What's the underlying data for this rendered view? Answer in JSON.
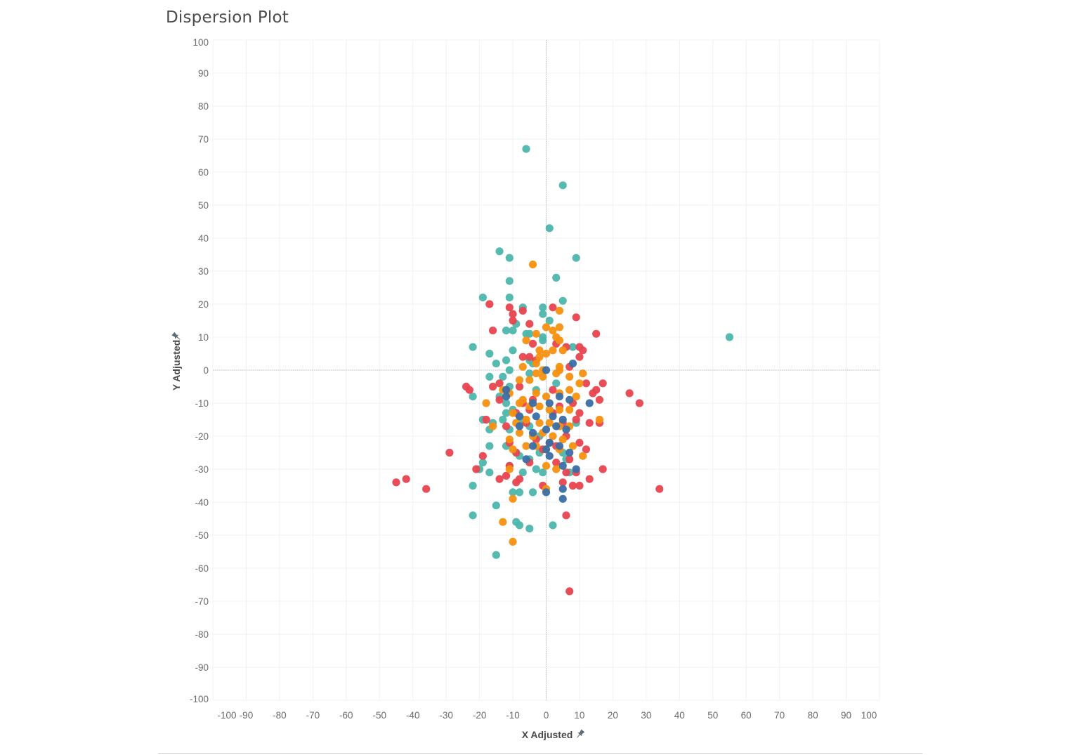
{
  "chart_data": {
    "type": "scatter",
    "title": "Dispersion Plot",
    "xlabel": "X Adjusted",
    "ylabel": "Y Adjusted",
    "xlim": [
      -100,
      100
    ],
    "ylim": [
      -100,
      100
    ],
    "grid": true,
    "zero_lines": true,
    "x_tick_labels": [
      "-100",
      "-90",
      "-80",
      "-70",
      "-60",
      "-50",
      "-40",
      "-30",
      "-20",
      "-10",
      "0",
      "10",
      "20",
      "30",
      "40",
      "50",
      "60",
      "70",
      "80",
      "90",
      "100"
    ],
    "x_ticks": [
      -100,
      -90,
      -80,
      -70,
      -60,
      -50,
      -40,
      -30,
      -20,
      -10,
      0,
      10,
      20,
      30,
      40,
      50,
      60,
      70,
      80,
      90,
      100
    ],
    "y_tick_labels": [
      "100",
      "90",
      "80",
      "70",
      "60",
      "50",
      "40",
      "30",
      "20",
      "10",
      "0",
      "-10",
      "-20",
      "-30",
      "-40",
      "-50",
      "-60",
      "-70",
      "-80",
      "-90",
      "-100"
    ],
    "y_ticks": [
      100,
      90,
      80,
      70,
      60,
      50,
      40,
      30,
      20,
      10,
      0,
      -10,
      -20,
      -30,
      -40,
      -50,
      -60,
      -70,
      -80,
      -90,
      -100
    ],
    "series": [
      {
        "name": "teal",
        "color": "#4db6ac",
        "points": [
          [
            -6,
            67
          ],
          [
            5,
            56
          ],
          [
            1,
            43
          ],
          [
            9,
            34
          ],
          [
            -14,
            36
          ],
          [
            -11,
            34
          ],
          [
            3,
            28
          ],
          [
            -11,
            27
          ],
          [
            5,
            21
          ],
          [
            -19,
            22
          ],
          [
            -11,
            22
          ],
          [
            -7,
            19
          ],
          [
            -1,
            19
          ],
          [
            -1,
            17
          ],
          [
            1,
            15
          ],
          [
            -9,
            14
          ],
          [
            -10,
            12
          ],
          [
            -6,
            11
          ],
          [
            -5,
            11
          ],
          [
            -1,
            10
          ],
          [
            -1,
            9
          ],
          [
            -12,
            12
          ],
          [
            -22,
            7
          ],
          [
            -17,
            5
          ],
          [
            -10,
            6
          ],
          [
            8,
            7
          ],
          [
            -12,
            3
          ],
          [
            -15,
            2
          ],
          [
            -5,
            3
          ],
          [
            -4,
            2
          ],
          [
            -11,
            0
          ],
          [
            -5,
            -1
          ],
          [
            -17,
            -2
          ],
          [
            -13,
            -2
          ],
          [
            -22,
            -8
          ],
          [
            -11,
            -5
          ],
          [
            -14,
            -8
          ],
          [
            -12,
            -10
          ],
          [
            -3,
            -6
          ],
          [
            3,
            -4
          ],
          [
            -10,
            -12
          ],
          [
            -12,
            -13
          ],
          [
            -7,
            -15
          ],
          [
            -19,
            -15
          ],
          [
            -16,
            -16
          ],
          [
            -13,
            -15
          ],
          [
            -8,
            -14
          ],
          [
            -17,
            -18
          ],
          [
            -11,
            -18
          ],
          [
            -5,
            -17
          ],
          [
            9,
            -16
          ],
          [
            -2,
            -20
          ],
          [
            -17,
            -23
          ],
          [
            -12,
            -23
          ],
          [
            -9,
            -25
          ],
          [
            -5,
            -27
          ],
          [
            -2,
            -25
          ],
          [
            -8,
            -26
          ],
          [
            5,
            -25
          ],
          [
            6,
            -27
          ],
          [
            -19,
            -28
          ],
          [
            -11,
            -29
          ],
          [
            -20,
            -30
          ],
          [
            -17,
            -31
          ],
          [
            -7,
            -31
          ],
          [
            -3,
            -30
          ],
          [
            -1,
            -31
          ],
          [
            -22,
            -35
          ],
          [
            -10,
            -37
          ],
          [
            -8,
            -37
          ],
          [
            -4,
            -37
          ],
          [
            -15,
            -41
          ],
          [
            -22,
            -44
          ],
          [
            -9,
            -46
          ],
          [
            -8,
            -47
          ],
          [
            -5,
            -48
          ],
          [
            2,
            -47
          ],
          [
            -15,
            -56
          ],
          [
            55,
            10
          ],
          [
            7,
            -31
          ]
        ]
      },
      {
        "name": "red",
        "color": "#e8454f",
        "points": [
          [
            -17,
            20
          ],
          [
            -11,
            19
          ],
          [
            -7,
            18
          ],
          [
            2,
            19
          ],
          [
            9,
            16
          ],
          [
            -10,
            17
          ],
          [
            -10,
            15
          ],
          [
            -5,
            14
          ],
          [
            -16,
            12
          ],
          [
            15,
            11
          ],
          [
            -4,
            8
          ],
          [
            3,
            8
          ],
          [
            6,
            7
          ],
          [
            10,
            7
          ],
          [
            11,
            6
          ],
          [
            -7,
            4
          ],
          [
            -5,
            4
          ],
          [
            10,
            4
          ],
          [
            -3,
            3
          ],
          [
            7,
            1
          ],
          [
            -24,
            -5
          ],
          [
            -23,
            -6
          ],
          [
            -16,
            -5
          ],
          [
            -14,
            -4
          ],
          [
            -12,
            -6
          ],
          [
            -8,
            -5
          ],
          [
            2,
            -6
          ],
          [
            12,
            -4
          ],
          [
            15,
            -6
          ],
          [
            17,
            -4
          ],
          [
            -14,
            -9
          ],
          [
            -7,
            -10
          ],
          [
            -4,
            -9
          ],
          [
            4,
            -11
          ],
          [
            8,
            -10
          ],
          [
            14,
            -7
          ],
          [
            -9,
            -13
          ],
          [
            -5,
            -12
          ],
          [
            2,
            -13
          ],
          [
            10,
            -13
          ],
          [
            16,
            -9
          ],
          [
            25,
            -7
          ],
          [
            28,
            -10
          ],
          [
            -18,
            -15
          ],
          [
            -12,
            -17
          ],
          [
            -6,
            -16
          ],
          [
            5,
            -16
          ],
          [
            9,
            -15
          ],
          [
            13,
            -16
          ],
          [
            16,
            -16
          ],
          [
            -11,
            -22
          ],
          [
            -3,
            -21
          ],
          [
            1,
            -22
          ],
          [
            6,
            -20
          ],
          [
            10,
            -22
          ],
          [
            -9,
            -25
          ],
          [
            -1,
            -24
          ],
          [
            3,
            -23
          ],
          [
            12,
            -24
          ],
          [
            -29,
            -25
          ],
          [
            -19,
            -26
          ],
          [
            -11,
            -29
          ],
          [
            -5,
            -28
          ],
          [
            3,
            -28
          ],
          [
            7,
            -27
          ],
          [
            -21,
            -30
          ],
          [
            6,
            -31
          ],
          [
            9,
            -31
          ],
          [
            -45,
            -34
          ],
          [
            -42,
            -33
          ],
          [
            -36,
            -36
          ],
          [
            -14,
            -33
          ],
          [
            -12,
            -32
          ],
          [
            -9,
            -34
          ],
          [
            -8,
            -33
          ],
          [
            -1,
            -35
          ],
          [
            5,
            -34
          ],
          [
            8,
            -35
          ],
          [
            10,
            -35
          ],
          [
            13,
            -33
          ],
          [
            17,
            -30
          ],
          [
            34,
            -36
          ],
          [
            6,
            -44
          ],
          [
            7,
            -67
          ]
        ]
      },
      {
        "name": "orange",
        "color": "#f5900f",
        "points": [
          [
            -4,
            32
          ],
          [
            4,
            18
          ],
          [
            2,
            12
          ],
          [
            4,
            13
          ],
          [
            -3,
            11
          ],
          [
            0,
            13
          ],
          [
            3,
            10
          ],
          [
            -6,
            9
          ],
          [
            4,
            9
          ],
          [
            -2,
            6
          ],
          [
            2,
            6
          ],
          [
            5,
            6
          ],
          [
            0,
            5
          ],
          [
            -2,
            4
          ],
          [
            -3,
            2
          ],
          [
            4,
            1
          ],
          [
            -7,
            1
          ],
          [
            -3,
            -1
          ],
          [
            -1,
            0
          ],
          [
            4,
            0
          ],
          [
            11,
            -1
          ],
          [
            -8,
            -3
          ],
          [
            -5,
            -3
          ],
          [
            -1,
            -2
          ],
          [
            3,
            -1
          ],
          [
            7,
            -2
          ],
          [
            10,
            -4
          ],
          [
            -18,
            -10
          ],
          [
            -13,
            -6
          ],
          [
            -11,
            -7
          ],
          [
            -7,
            -9
          ],
          [
            -3,
            -7
          ],
          [
            0,
            -8
          ],
          [
            4,
            -7
          ],
          [
            7,
            -6
          ],
          [
            9,
            -8
          ],
          [
            -10,
            -13
          ],
          [
            -8,
            -10
          ],
          [
            -5,
            -11
          ],
          [
            -2,
            -11
          ],
          [
            1,
            -12
          ],
          [
            4,
            -12
          ],
          [
            7,
            -12
          ],
          [
            -16,
            -17
          ],
          [
            -9,
            -16
          ],
          [
            -6,
            -15
          ],
          [
            -2,
            -16
          ],
          [
            1,
            -16
          ],
          [
            4,
            -17
          ],
          [
            7,
            -17
          ],
          [
            16,
            -15
          ],
          [
            -11,
            -21
          ],
          [
            -8,
            -19
          ],
          [
            -4,
            -20
          ],
          [
            -1,
            -19
          ],
          [
            2,
            -20
          ],
          [
            5,
            -21
          ],
          [
            8,
            -23
          ],
          [
            -10,
            -24
          ],
          [
            -6,
            -23
          ],
          [
            -3,
            -23
          ],
          [
            0,
            -24
          ],
          [
            4,
            -24
          ],
          [
            11,
            -26
          ],
          [
            -11,
            -30
          ],
          [
            0,
            -29
          ],
          [
            3,
            -30
          ],
          [
            -10,
            -39
          ],
          [
            0,
            -36
          ],
          [
            -13,
            -46
          ],
          [
            -10,
            -52
          ]
        ]
      },
      {
        "name": "navy",
        "color": "#3a6ea5",
        "points": [
          [
            0,
            0
          ],
          [
            8,
            2
          ],
          [
            -12,
            -6
          ],
          [
            -12,
            -8
          ],
          [
            -4,
            -10
          ],
          [
            1,
            -10
          ],
          [
            4,
            -8
          ],
          [
            7,
            -9
          ],
          [
            13,
            -10
          ],
          [
            -8,
            -14
          ],
          [
            -3,
            -14
          ],
          [
            2,
            -14
          ],
          [
            5,
            -15
          ],
          [
            -8,
            -17
          ],
          [
            -4,
            -19
          ],
          [
            0,
            -18
          ],
          [
            3,
            -17
          ],
          [
            6,
            -18
          ],
          [
            -4,
            -23
          ],
          [
            0,
            -24
          ],
          [
            4,
            -23
          ],
          [
            7,
            -25
          ],
          [
            -6,
            -27
          ],
          [
            1,
            -26
          ],
          [
            5,
            -29
          ],
          [
            9,
            -30
          ],
          [
            5,
            -36
          ],
          [
            0,
            -37
          ],
          [
            5,
            -39
          ],
          [
            1,
            -22
          ]
        ]
      }
    ]
  }
}
